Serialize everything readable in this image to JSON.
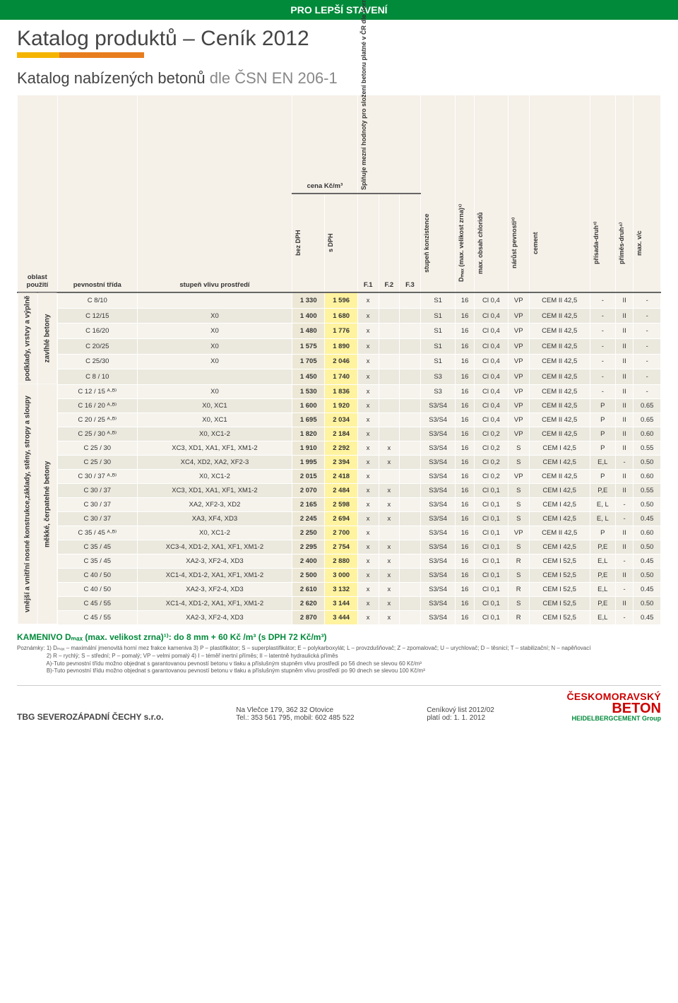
{
  "banner": "PRO LEPŠÍ STAVENÍ",
  "title": "Katalog produktů – Ceník 2012",
  "subtitle_a": "Katalog nabízených betonů",
  "subtitle_b": " dle ČSN EN 206-1",
  "headers": {
    "oblast": "oblast\npoužití",
    "pevnostni": "pevnostní třída",
    "stupen_vlivu": "stupeň vlivu prostředí",
    "cena": "cena Kč/m³",
    "bez": "bez DPH",
    "s": "s DPH",
    "splnuje": "Splňuje mezní hodnoty pro složení betonu platné v ČR dle normy - tabulka č.",
    "f1": "F.1",
    "f2": "F.2",
    "f3": "F.3",
    "konzistence": "stupeň konzistence",
    "dmax": "Dₘₐₓ (max. velikost zrna)¹⁾",
    "chloridy": "max. obsah chloridů",
    "narust": "nárůst pevnosti²⁾",
    "cement": "cement",
    "prisada": "přísada-druh³⁾",
    "primes": "příměs-druh⁴⁾",
    "vc": "max. v/c"
  },
  "side1": "podklady, vrstvy a výplně",
  "side1b": "zavlhlé betony",
  "side2": "vnější a vnitřní nosné konstrukce,základy, stěny, stropy a sloupy",
  "side2b": "měkké, čerpatelné betony",
  "rows": [
    [
      "C 8/10",
      "",
      "1 330",
      "1 596",
      "x",
      "",
      "",
      "S1",
      "16",
      "Cl 0,4",
      "VP",
      "CEM II 42,5",
      "-",
      "II",
      "-"
    ],
    [
      "C 12/15",
      "X0",
      "1 400",
      "1 680",
      "x",
      "",
      "",
      "S1",
      "16",
      "Cl 0,4",
      "VP",
      "CEM II 42,5",
      "-",
      "II",
      "-"
    ],
    [
      "C 16/20",
      "X0",
      "1 480",
      "1 776",
      "x",
      "",
      "",
      "S1",
      "16",
      "Cl 0,4",
      "VP",
      "CEM II 42,5",
      "-",
      "II",
      "-"
    ],
    [
      "C 20/25",
      "X0",
      "1 575",
      "1 890",
      "x",
      "",
      "",
      "S1",
      "16",
      "Cl 0,4",
      "VP",
      "CEM II 42,5",
      "-",
      "II",
      "-"
    ],
    [
      "C 25/30",
      "X0",
      "1 705",
      "2 046",
      "x",
      "",
      "",
      "S1",
      "16",
      "Cl 0,4",
      "VP",
      "CEM II 42,5",
      "-",
      "II",
      "-"
    ],
    [
      "C 8 / 10",
      "",
      "1 450",
      "1 740",
      "x",
      "",
      "",
      "S3",
      "16",
      "Cl 0,4",
      "VP",
      "CEM II 42,5",
      "-",
      "II",
      "-"
    ],
    [
      "C 12 / 15 ᴬ·ᴮ⁾",
      "X0",
      "1 530",
      "1 836",
      "x",
      "",
      "",
      "S3",
      "16",
      "Cl 0,4",
      "VP",
      "CEM II 42,5",
      "-",
      "II",
      "-"
    ],
    [
      "C 16 / 20 ᴬ·ᴮ⁾",
      "X0, XC1",
      "1 600",
      "1 920",
      "x",
      "",
      "",
      "S3/S4",
      "16",
      "Cl 0,4",
      "VP",
      "CEM II 42,5",
      "P",
      "II",
      "0.65"
    ],
    [
      "C 20 / 25 ᴬ·ᴮ⁾",
      "X0, XC1",
      "1 695",
      "2 034",
      "x",
      "",
      "",
      "S3/S4",
      "16",
      "Cl 0,4",
      "VP",
      "CEM II 42,5",
      "P",
      "II",
      "0.65"
    ],
    [
      "C 25 / 30 ᴬ·ᴮ⁾",
      "X0, XC1-2",
      "1 820",
      "2 184",
      "x",
      "",
      "",
      "S3/S4",
      "16",
      "Cl 0,2",
      "VP",
      "CEM II 42,5",
      "P",
      "II",
      "0.60"
    ],
    [
      "C 25 / 30",
      "XC3, XD1, XA1, XF1, XM1-2",
      "1 910",
      "2 292",
      "x",
      "x",
      "",
      "S3/S4",
      "16",
      "Cl 0,2",
      "S",
      "CEM I 42,5",
      "P",
      "II",
      "0.55"
    ],
    [
      "C 25 / 30",
      "XC4, XD2, XA2, XF2-3",
      "1 995",
      "2 394",
      "x",
      "x",
      "",
      "S3/S4",
      "16",
      "Cl 0,2",
      "S",
      "CEM I 42,5",
      "E,L",
      "-",
      "0.50"
    ],
    [
      "C 30 / 37 ᴬ·ᴮ⁾",
      "X0, XC1-2",
      "2 015",
      "2 418",
      "x",
      "",
      "",
      "S3/S4",
      "16",
      "Cl 0,2",
      "VP",
      "CEM II 42,5",
      "P",
      "II",
      "0.60"
    ],
    [
      "C 30 / 37",
      "XC3, XD1, XA1, XF1, XM1-2",
      "2 070",
      "2 484",
      "x",
      "x",
      "",
      "S3/S4",
      "16",
      "Cl 0,1",
      "S",
      "CEM I 42,5",
      "P,E",
      "II",
      "0.55"
    ],
    [
      "C 30 / 37",
      "XA2, XF2-3, XD2",
      "2 165",
      "2 598",
      "x",
      "x",
      "",
      "S3/S4",
      "16",
      "Cl 0,1",
      "S",
      "CEM I 42,5",
      "E, L",
      "-",
      "0.50"
    ],
    [
      "C 30 / 37",
      "XA3, XF4, XD3",
      "2 245",
      "2 694",
      "x",
      "x",
      "",
      "S3/S4",
      "16",
      "Cl 0,1",
      "S",
      "CEM I 42,5",
      "E, L",
      "-",
      "0.45"
    ],
    [
      "C 35 / 45 ᴬ·ᴮ⁾",
      "X0, XC1-2",
      "2 250",
      "2 700",
      "x",
      "",
      "",
      "S3/S4",
      "16",
      "Cl 0,1",
      "VP",
      "CEM II 42,5",
      "P",
      "II",
      "0.60"
    ],
    [
      "C 35 / 45",
      "XC3-4, XD1-2, XA1, XF1, XM1-2",
      "2 295",
      "2 754",
      "x",
      "x",
      "",
      "S3/S4",
      "16",
      "Cl 0,1",
      "S",
      "CEM I 42,5",
      "P,E",
      "II",
      "0.50"
    ],
    [
      "C 35 / 45",
      "XA2-3, XF2-4, XD3",
      "2 400",
      "2 880",
      "x",
      "x",
      "",
      "S3/S4",
      "16",
      "Cl 0,1",
      "R",
      "CEM I 52,5",
      "E,L",
      "-",
      "0.45"
    ],
    [
      "C 40 / 50",
      "XC1-4, XD1-2, XA1, XF1, XM1-2",
      "2 500",
      "3 000",
      "x",
      "x",
      "",
      "S3/S4",
      "16",
      "Cl 0,1",
      "S",
      "CEM I 52,5",
      "P,E",
      "II",
      "0.50"
    ],
    [
      "C 40 / 50",
      "XA2-3, XF2-4, XD3",
      "2 610",
      "3 132",
      "x",
      "x",
      "",
      "S3/S4",
      "16",
      "Cl 0,1",
      "R",
      "CEM I 52,5",
      "E,L",
      "-",
      "0.45"
    ],
    [
      "C 45 / 55",
      "XC1-4, XD1-2, XA1, XF1, XM1-2",
      "2 620",
      "3 144",
      "x",
      "x",
      "",
      "S3/S4",
      "16",
      "Cl 0,1",
      "S",
      "CEM I 52,5",
      "P,E",
      "II",
      "0.50"
    ],
    [
      "C 45 / 55",
      "XA2-3, XF2-4, XD3",
      "2 870",
      "3 444",
      "x",
      "x",
      "",
      "S3/S4",
      "16",
      "Cl 0,1",
      "R",
      "CEM I 52,5",
      "E,L",
      "-",
      "0.45"
    ]
  ],
  "kamenivo": "KAMENIVO Dₘₐₓ (max. velikost zrna)¹⁾: do 8 mm + 60 Kč /m³ (s DPH 72 Kč/m³)",
  "notes_pre": "Poznámky:",
  "notes1": "1) Dₘₐₓ – maximální jmenovitá horní mez frakce kameniva   3) P – plastifikátor; S – superplastifikátor; E – polykarboxylát; L – provzdušňovač; Z – zpomalovač; U – urychlovač; D – těsnicí; T – stabilizační; N – napěňovací",
  "notes2": "2) R – rychlý; S – střední; P – pomalý; VP – velmi pomalý   4) I – téměř inertní příměs; II – latentně hydraulická příměs",
  "notesA": "A)-Tuto pevnostní třídu možno objednat s garantovanou pevností betonu v tlaku a příslušným stupněm vlivu prostředí po 56 dnech se slevou 60 Kč/m³",
  "notesB": "B)-Tuto pevnostní třídu možno objednat s garantovanou pevností betonu v tlaku a příslušným stupněm vlivu prostředí po 90 dnech se slevou 100 Kč/m³",
  "footer": {
    "company": "TBG SEVEROZÁPADNÍ ČECHY s.r.o.",
    "addr": "Na Vlečce 179, 362 32 Otovice",
    "tel": "Tel.: 353 561 795, mobil: 602 485 522",
    "cenik": "Ceníkový list 2012/02",
    "plati": "platí od: 1. 1. 2012",
    "logo1": "ČESKOMORAVSKÝ",
    "logo2": "BETON",
    "logo3": "HEIDELBERGCEMENT Group"
  },
  "group1_rows": 6,
  "group2_rows": 17
}
